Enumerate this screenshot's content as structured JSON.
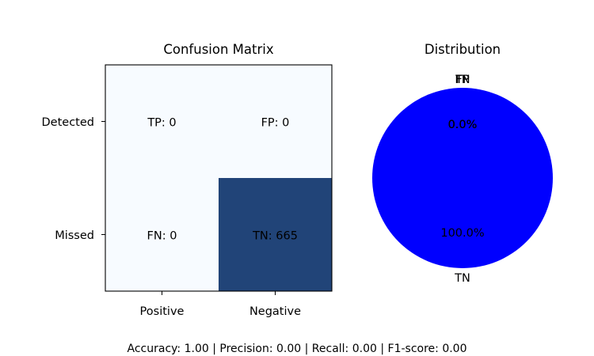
{
  "chart_data": [
    {
      "type": "heatmap",
      "title": "Confusion Matrix",
      "x_tick_labels": [
        "Positive",
        "Negative"
      ],
      "y_tick_labels": [
        "Detected",
        "Missed"
      ],
      "cells": [
        [
          {
            "label": "TP: 0",
            "value": 0
          },
          {
            "label": "FP: 0",
            "value": 0
          }
        ],
        [
          {
            "label": "FN: 0",
            "value": 0
          },
          {
            "label": "TN: 665",
            "value": 665
          }
        ]
      ],
      "vmax": 665,
      "colors": {
        "low": "#f7fbff",
        "high": "#214478"
      }
    },
    {
      "type": "pie",
      "title": "Distribution",
      "slices": [
        {
          "label": "TP",
          "pct_label": "0.0%",
          "value": 0,
          "color": "#ff0000"
        },
        {
          "label": "FP",
          "pct_label": "0.0%",
          "value": 0,
          "color": "#ffa500"
        },
        {
          "label": "FN",
          "pct_label": "0.0%",
          "value": 0,
          "color": "#008000"
        },
        {
          "label": "TN",
          "pct_label": "100.0%",
          "value": 665,
          "color": "#0000ff"
        }
      ]
    }
  ],
  "footer": {
    "metrics_text": "Accuracy: 1.00 | Precision: 0.00 | Recall: 0.00 | F1-score: 0.00"
  }
}
